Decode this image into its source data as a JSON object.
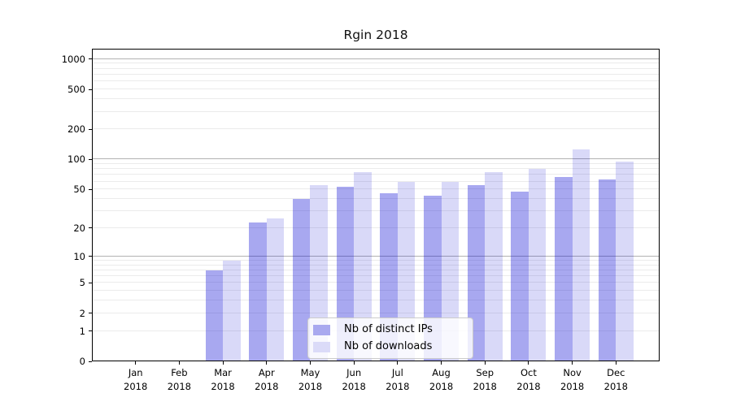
{
  "figure": {
    "background": "#ffffff"
  },
  "chart_data": {
    "type": "bar",
    "title": "Rgin 2018",
    "categories": [
      "Jan",
      "Feb",
      "Mar",
      "Apr",
      "May",
      "Jun",
      "Jul",
      "Aug",
      "Sep",
      "Oct",
      "Nov",
      "Dec"
    ],
    "category_year": "2018",
    "series": [
      {
        "name": "Nb of distinct IPs",
        "color": "#a9a9ef",
        "bar_fill": "rgba(0,0,210,0.34)",
        "values": [
          0,
          0,
          7,
          23,
          40,
          53,
          46,
          43,
          55,
          47,
          67,
          63
        ]
      },
      {
        "name": "Nb of downloads",
        "color": "#dbdbf8",
        "bar_fill": "rgba(0,0,210,0.15)",
        "values": [
          0,
          0,
          9,
          25,
          55,
          75,
          60,
          60,
          75,
          80,
          125,
          95
        ]
      }
    ],
    "xlabel": "",
    "ylabel": "",
    "yscale": "log1p",
    "ylim": [
      0,
      1268
    ],
    "yticks": [
      0,
      1,
      2,
      5,
      10,
      20,
      50,
      100,
      200,
      500,
      1000
    ],
    "grid_minor": [
      1,
      2,
      3,
      4,
      5,
      6,
      7,
      8,
      9,
      20,
      30,
      40,
      50,
      60,
      70,
      80,
      90,
      200,
      300,
      400,
      500,
      600,
      700,
      800,
      900
    ],
    "grid_major": [
      10,
      100,
      1000
    ],
    "legend_position": "lower center inside plot",
    "colors": {
      "minor_grid": "#ebebeb",
      "major_grid": "#b2b2b2",
      "spine": "#000000",
      "text": "#000000"
    }
  }
}
